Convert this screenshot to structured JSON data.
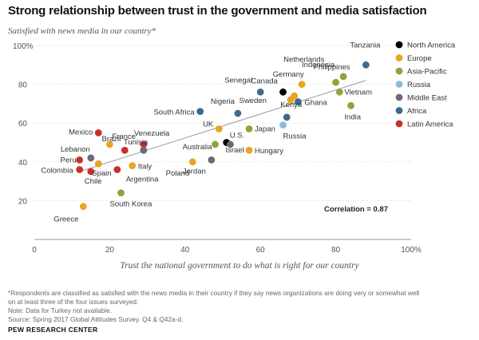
{
  "title": "Strong relationship between trust in the government and media satisfaction",
  "subtitle": "Satisfied with news media in our country*",
  "xlabel": "Trust the national government to do what is right for our country",
  "footnote_lines": [
    "*Respondents are classified as satisfied with the news media in their country if they say news organizations are doing very or somewhat well",
    "on at least three of the four issues surveyed.",
    "Note: Data for Turkey not available.",
    "Source: Spring 2017 Global Attitudes Survey. Q4 & Q42a-d."
  ],
  "source_org": "PEW RESEARCH CENTER",
  "chart_data": {
    "type": "scatter",
    "xlim": [
      0,
      100
    ],
    "ylim": [
      0,
      100
    ],
    "x_ticks": [
      0,
      20,
      40,
      60,
      80,
      100
    ],
    "x_tick_labels": [
      "0",
      "20",
      "40",
      "60",
      "80",
      "100%"
    ],
    "y_ticks": [
      20,
      40,
      60,
      80,
      100
    ],
    "y_tick_labels": [
      "20",
      "40",
      "60",
      "80",
      "100%"
    ],
    "grid": "horizontal",
    "legend_position": "top-right",
    "annotation": "Correlation = 0.87",
    "trendline": {
      "from": [
        12,
        35
      ],
      "to": [
        88,
        82
      ]
    },
    "regions": [
      {
        "name": "North America",
        "color": "#000000"
      },
      {
        "name": "Europe",
        "color": "#E8A422"
      },
      {
        "name": "Asia-Pacific",
        "color": "#8BA63A"
      },
      {
        "name": "Russia",
        "color": "#8FB9D6"
      },
      {
        "name": "Middle East",
        "color": "#6C6A78"
      },
      {
        "name": "Africa",
        "color": "#3C6A8E"
      },
      {
        "name": "Latin America",
        "color": "#C8312B"
      }
    ],
    "points": [
      {
        "country": "Tanzania",
        "region": "Africa",
        "x": 88,
        "y": 90
      },
      {
        "country": "Indonesia",
        "region": "Asia-Pacific",
        "x": 82,
        "y": 84
      },
      {
        "country": "Netherlands",
        "region": "Europe",
        "x": 71,
        "y": 80
      },
      {
        "country": "Philippines",
        "region": "Asia-Pacific",
        "x": 80,
        "y": 81
      },
      {
        "country": "Vietnam",
        "region": "Asia-Pacific",
        "x": 81,
        "y": 76
      },
      {
        "country": "Germany",
        "region": "Europe",
        "x": 69,
        "y": 74
      },
      {
        "country": "Canada",
        "region": "North America",
        "x": 66,
        "y": 76
      },
      {
        "country": "Senegal",
        "region": "Africa",
        "x": 60,
        "y": 76
      },
      {
        "country": "Sweden",
        "region": "Europe",
        "x": 68,
        "y": 72
      },
      {
        "country": "Ghana",
        "region": "Africa",
        "x": 70,
        "y": 71
      },
      {
        "country": "India",
        "region": "Asia-Pacific",
        "x": 84,
        "y": 69
      },
      {
        "country": "Nigeria",
        "region": "Africa",
        "x": 54,
        "y": 65
      },
      {
        "country": "South Africa",
        "region": "Africa",
        "x": 44,
        "y": 66
      },
      {
        "country": "Kenya",
        "region": "Africa",
        "x": 67,
        "y": 63
      },
      {
        "country": "UK",
        "region": "Europe",
        "x": 49,
        "y": 57
      },
      {
        "country": "Japan",
        "region": "Asia-Pacific",
        "x": 57,
        "y": 57
      },
      {
        "country": "Russia",
        "region": "Russia",
        "x": 66,
        "y": 59
      },
      {
        "country": "U.S.",
        "region": "North America",
        "x": 51,
        "y": 50
      },
      {
        "country": "Australia",
        "region": "Asia-Pacific",
        "x": 48,
        "y": 49
      },
      {
        "country": "Hungary",
        "region": "Europe",
        "x": 57,
        "y": 46
      },
      {
        "country": "Israel",
        "region": "Middle East",
        "x": 52,
        "y": 49
      },
      {
        "country": "Mexico",
        "region": "Latin America",
        "x": 17,
        "y": 55
      },
      {
        "country": "France",
        "region": "Europe",
        "x": 20,
        "y": 49
      },
      {
        "country": "Venezuela",
        "region": "Latin America",
        "x": 29,
        "y": 49
      },
      {
        "country": "Lebanon",
        "region": "Middle East",
        "x": 15,
        "y": 42
      },
      {
        "country": "Tunisia",
        "region": "Middle East",
        "x": 29,
        "y": 46
      },
      {
        "country": "Brazil",
        "region": "Latin America",
        "x": 24,
        "y": 46
      },
      {
        "country": "Peru",
        "region": "Latin America",
        "x": 12,
        "y": 41
      },
      {
        "country": "Colombia",
        "region": "Latin America",
        "x": 12,
        "y": 36
      },
      {
        "country": "Chile",
        "region": "Latin America",
        "x": 15,
        "y": 35
      },
      {
        "country": "Spain",
        "region": "Europe",
        "x": 17,
        "y": 39
      },
      {
        "country": "Italy",
        "region": "Europe",
        "x": 26,
        "y": 38
      },
      {
        "country": "Argentina",
        "region": "Latin America",
        "x": 22,
        "y": 36
      },
      {
        "country": "Poland",
        "region": "Europe",
        "x": 42,
        "y": 40
      },
      {
        "country": "Jordan",
        "region": "Middle East",
        "x": 47,
        "y": 41
      },
      {
        "country": "South Korea",
        "region": "Asia-Pacific",
        "x": 23,
        "y": 24
      },
      {
        "country": "Greece",
        "region": "Europe",
        "x": 13,
        "y": 17
      }
    ]
  }
}
